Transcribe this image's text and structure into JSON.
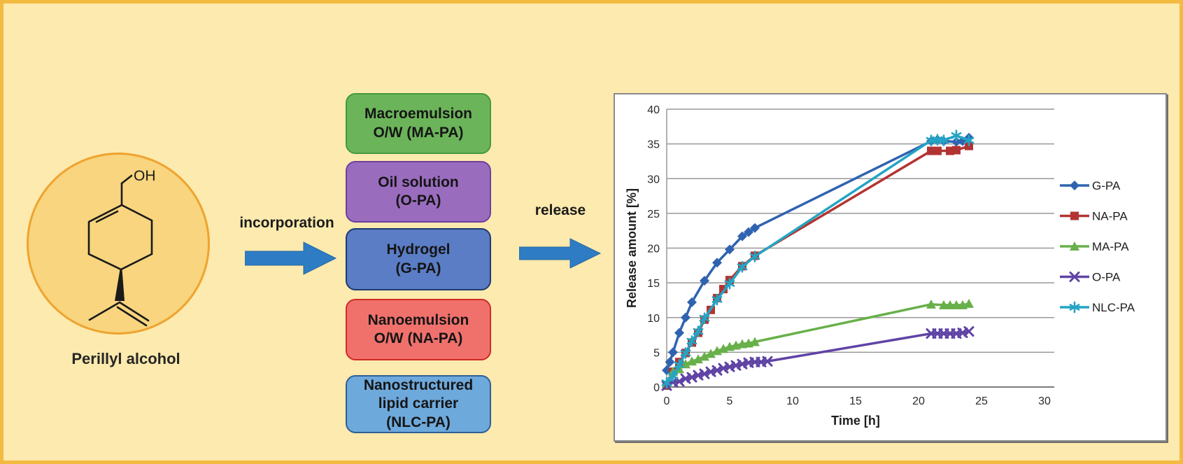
{
  "figure": {
    "background_color": "#fdeaae",
    "frame_color": "#f3ba41"
  },
  "molecule": {
    "caption": "Perillyl alcohol",
    "hydroxyl_label": "OH",
    "circle_fill": "#f8d57e",
    "circle_border": "#efa32f"
  },
  "flow": {
    "incorporation_label": "incorporation",
    "release_label": "release",
    "arrow_color": "#2e7cc3",
    "boxes": [
      {
        "id": "MA-PA",
        "lines": [
          "Macroemulsion",
          "O/W (MA-PA)"
        ],
        "fill": "#6cb45a",
        "border": "#449a3e"
      },
      {
        "id": "O-PA",
        "lines": [
          "Oil solution",
          "(O-PA)"
        ],
        "fill": "#9a6cbe",
        "border": "#6f3fa0"
      },
      {
        "id": "G-PA",
        "lines": [
          "Hydrogel",
          "(G-PA)"
        ],
        "fill": "#5a7dc5",
        "border": "#1f3a70"
      },
      {
        "id": "NA-PA",
        "lines": [
          "Nanoemulsion",
          "O/W (NA-PA)"
        ],
        "fill": "#f0716c",
        "border": "#cf2b26"
      },
      {
        "id": "NLC-PA",
        "lines": [
          "Nanostructured",
          "lipid carrier",
          "(NLC-PA)"
        ],
        "fill": "#6ea9dc",
        "border": "#2e5f96"
      }
    ]
  },
  "chart_data": {
    "type": "line",
    "title": "",
    "xlabel": "Time [h]",
    "ylabel": "Release amount [%]",
    "xlim": [
      0,
      30
    ],
    "ylim": [
      0,
      40
    ],
    "xticks": [
      0,
      5,
      10,
      15,
      20,
      25,
      30
    ],
    "yticks": [
      0,
      5,
      10,
      15,
      20,
      25,
      30,
      35,
      40
    ],
    "grid": "horizontal",
    "legend_position": "right",
    "series": [
      {
        "name": "G-PA",
        "color": "#2f63b0",
        "marker": "diamond",
        "x": [
          0,
          0.25,
          0.5,
          1,
          1.5,
          2,
          3,
          4,
          5,
          6,
          6.5,
          7,
          21,
          21.5,
          22,
          23,
          23.5,
          24
        ],
        "y": [
          2.4,
          3.6,
          5.0,
          7.8,
          10.0,
          12.2,
          15.3,
          17.9,
          19.8,
          21.7,
          22.3,
          22.9,
          35.4,
          35.6,
          35.4,
          35.3,
          35.4,
          35.9
        ]
      },
      {
        "name": "NA-PA",
        "color": "#b23432",
        "marker": "square",
        "x": [
          0,
          0.5,
          1,
          1.5,
          2,
          2.5,
          3,
          3.5,
          4,
          4.5,
          5,
          6,
          7,
          21,
          21.5,
          22.5,
          23,
          24
        ],
        "y": [
          0.2,
          2.2,
          3.6,
          4.9,
          6.4,
          7.8,
          9.7,
          11.1,
          12.8,
          14.1,
          15.4,
          17.4,
          18.9,
          34.0,
          34.0,
          34.0,
          34.1,
          34.7
        ]
      },
      {
        "name": "MA-PA",
        "color": "#68b04a",
        "marker": "triangle",
        "x": [
          0,
          0.5,
          1,
          1.5,
          2,
          2.5,
          3,
          3.5,
          4,
          4.5,
          5,
          5.5,
          6,
          6.5,
          7,
          21,
          22,
          22.5,
          23,
          23.5,
          24
        ],
        "y": [
          0.5,
          2.2,
          2.6,
          3.3,
          3.7,
          4.0,
          4.4,
          4.8,
          5.2,
          5.5,
          5.8,
          6.0,
          6.2,
          6.3,
          6.5,
          11.9,
          11.8,
          11.8,
          11.8,
          11.8,
          12.0
        ]
      },
      {
        "name": "O-PA",
        "color": "#5f43a5",
        "marker": "x",
        "x": [
          0,
          0.5,
          1,
          1.5,
          2,
          2.5,
          3,
          3.5,
          4,
          4.5,
          5,
          5.5,
          6,
          6.5,
          7,
          7.5,
          8,
          21,
          21.5,
          22,
          22.5,
          23,
          23.5,
          24
        ],
        "y": [
          0.2,
          0.7,
          0.8,
          1.2,
          1.4,
          1.7,
          1.9,
          2.2,
          2.4,
          2.7,
          2.9,
          3.1,
          3.3,
          3.5,
          3.6,
          3.6,
          3.7,
          7.7,
          7.7,
          7.7,
          7.7,
          7.7,
          7.8,
          8.0
        ]
      },
      {
        "name": "NLC-PA",
        "color": "#24a4c4",
        "marker": "asterisk",
        "x": [
          0,
          0.5,
          1,
          1.5,
          2,
          2.5,
          3,
          4,
          5,
          6,
          7,
          21,
          21.5,
          22,
          23,
          24
        ],
        "y": [
          0.6,
          1.6,
          3.2,
          4.9,
          6.6,
          8.0,
          9.9,
          12.6,
          14.9,
          17.3,
          18.8,
          35.5,
          35.6,
          35.5,
          36.2,
          35.5
        ]
      }
    ]
  }
}
